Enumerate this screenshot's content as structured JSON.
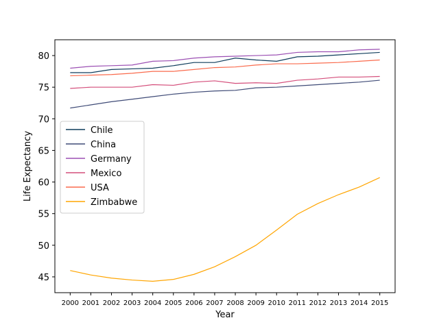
{
  "chart_data": {
    "type": "line",
    "title": "",
    "xlabel": "Year",
    "ylabel": "Life Expectancy",
    "x": [
      2000,
      2001,
      2002,
      2003,
      2004,
      2005,
      2006,
      2007,
      2008,
      2009,
      2010,
      2011,
      2012,
      2013,
      2014,
      2015
    ],
    "yticks": [
      45,
      50,
      55,
      60,
      65,
      70,
      75,
      80
    ],
    "ylim": [
      42.5,
      82.5
    ],
    "legend_position": "center-left",
    "grid": false,
    "series": [
      {
        "name": "Chile",
        "color": "#0d3b5a",
        "values": [
          77.3,
          77.3,
          77.8,
          77.9,
          78.0,
          78.4,
          78.9,
          78.9,
          79.6,
          79.3,
          79.1,
          79.8,
          79.9,
          80.1,
          80.3,
          80.5
        ]
      },
      {
        "name": "China",
        "color": "#3e4a76",
        "values": [
          71.7,
          72.2,
          72.7,
          73.1,
          73.5,
          73.9,
          74.2,
          74.4,
          74.5,
          74.9,
          75.0,
          75.2,
          75.4,
          75.6,
          75.8,
          76.1
        ]
      },
      {
        "name": "Germany",
        "color": "#9b4fb3",
        "values": [
          78.0,
          78.3,
          78.4,
          78.5,
          79.1,
          79.2,
          79.6,
          79.8,
          79.9,
          80.0,
          80.1,
          80.5,
          80.6,
          80.6,
          80.9,
          81.0
        ]
      },
      {
        "name": "Mexico",
        "color": "#d44d7a",
        "values": [
          74.8,
          75.0,
          75.0,
          75.0,
          75.4,
          75.3,
          75.8,
          76.0,
          75.6,
          75.7,
          75.6,
          76.1,
          76.3,
          76.6,
          76.6,
          76.7
        ]
      },
      {
        "name": "USA",
        "color": "#fa6a4c",
        "values": [
          76.8,
          76.9,
          77.0,
          77.2,
          77.5,
          77.5,
          77.8,
          78.1,
          78.2,
          78.5,
          78.7,
          78.7,
          78.8,
          78.9,
          79.1,
          79.3
        ]
      },
      {
        "name": "Zimbabwe",
        "color": "#ffa500",
        "values": [
          46.0,
          45.3,
          44.8,
          44.5,
          44.3,
          44.6,
          45.4,
          46.6,
          48.2,
          50.0,
          52.4,
          54.9,
          56.6,
          58.0,
          59.2,
          60.7
        ]
      }
    ]
  }
}
